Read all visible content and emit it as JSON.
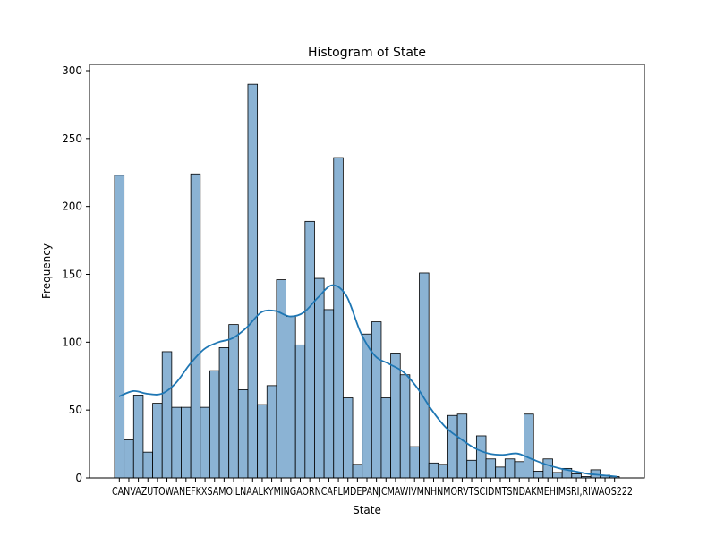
{
  "chart_data": {
    "type": "bar",
    "title": "Histogram of State",
    "xlabel": "State",
    "ylabel": "Frequency",
    "ylim": [
      0,
      300
    ],
    "yticks": [
      0,
      50,
      100,
      150,
      200,
      250,
      300
    ],
    "grid": false,
    "legend": "none",
    "bar_color": "#8bb3d4",
    "edge_color": "#000000",
    "kde_color": "#1f77b4",
    "xtick_text": "CANVAZUTOWANEFKXSAMOILNAALKYMINGAORNCAFLMDEPANJCMAWIVMNHNMORVTSCIDMTSNDAKMEHIMSRI,RIWAOS222",
    "values": [
      223,
      28,
      61,
      19,
      55,
      93,
      52,
      52,
      224,
      52,
      79,
      96,
      113,
      65,
      290,
      54,
      68,
      146,
      119,
      98,
      189,
      147,
      124,
      236,
      59,
      10,
      106,
      115,
      59,
      92,
      76,
      23,
      151,
      11,
      10,
      46,
      47,
      13,
      31,
      14,
      8,
      14,
      12,
      47,
      5,
      14,
      4,
      7,
      3,
      1,
      6,
      2,
      1
    ],
    "kde": [
      60,
      64,
      62,
      62,
      70,
      84,
      95,
      100,
      103,
      111,
      122,
      123,
      119,
      122,
      133,
      142,
      134,
      107,
      90,
      84,
      78,
      66,
      50,
      37,
      29,
      22,
      18,
      17,
      18,
      14,
      10,
      7,
      5,
      3,
      2,
      1
    ]
  }
}
